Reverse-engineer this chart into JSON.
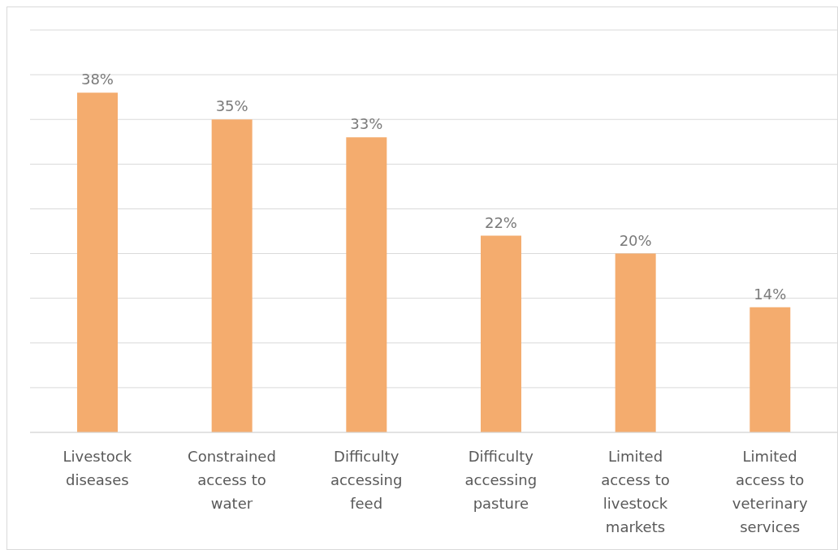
{
  "chart_data": {
    "type": "bar",
    "categories": [
      "Livestock diseases",
      "Constrained access to water",
      "Difficulty accessing feed",
      "Difficulty accessing pasture",
      "Limited access to livestock markets",
      "Limited access to veterinary services"
    ],
    "values": [
      38,
      35,
      33,
      22,
      20,
      14
    ],
    "value_labels": [
      "38%",
      "35%",
      "33%",
      "22%",
      "20%",
      "14%"
    ],
    "color": "#f4ac6e",
    "ylim": [
      0,
      45
    ],
    "yticks": [
      {
        "value": 0,
        "label": null
      },
      {
        "value": 5,
        "label": null
      },
      {
        "value": 10,
        "label": null
      },
      {
        "value": 15,
        "label": null
      },
      {
        "value": 20,
        "label": null
      },
      {
        "value": 25,
        "label": null
      },
      {
        "value": 30,
        "label": null
      },
      {
        "value": 35,
        "label": null
      },
      {
        "value": 40,
        "label": null
      },
      {
        "value": 45,
        "label": null
      }
    ],
    "grid": "y",
    "tick_labels": "x",
    "legend": false
  }
}
